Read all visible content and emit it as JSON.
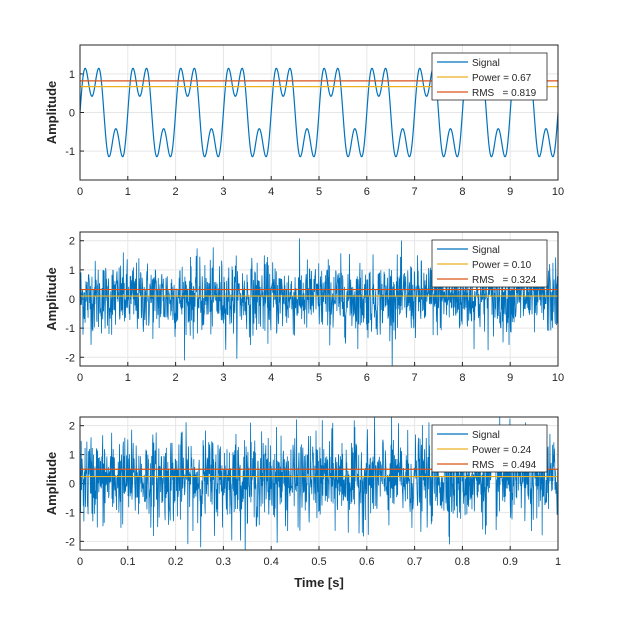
{
  "chart_data": [
    {
      "type": "line",
      "ylabel": "Amplitude",
      "xlabel": "",
      "xlim": [
        0,
        10
      ],
      "ylim": [
        -1.75,
        1.75
      ],
      "xticks": [
        "0",
        "1",
        "2",
        "3",
        "4",
        "5",
        "6",
        "7",
        "8",
        "9",
        "10"
      ],
      "yticks": [
        "-1",
        "0",
        "1"
      ],
      "ytick_values": [
        -1,
        0,
        1
      ],
      "grid": true,
      "legend_position": "top-right",
      "series": [
        {
          "name": "Signal",
          "color": "#0072bd",
          "kind": "periodic",
          "period": 1,
          "peak": 1.38,
          "trough": -1.38
        },
        {
          "name": "Power = 0.67",
          "color": "#edb120",
          "value": 0.67
        },
        {
          "name": "RMS   = 0.819",
          "color": "#d95319",
          "value": 0.819
        }
      ]
    },
    {
      "type": "line",
      "ylabel": "Amplitude",
      "xlabel": "",
      "xlim": [
        0,
        10
      ],
      "ylim": [
        -2.3,
        2.3
      ],
      "xticks": [
        "0",
        "1",
        "2",
        "3",
        "4",
        "5",
        "6",
        "7",
        "8",
        "9",
        "10"
      ],
      "yticks": [
        "-2",
        "-1",
        "0",
        "1",
        "2"
      ],
      "ytick_values": [
        -2,
        -1,
        0,
        1,
        2
      ],
      "grid": true,
      "legend_position": "top-right",
      "series": [
        {
          "name": "Signal",
          "color": "#0072bd",
          "kind": "noise"
        },
        {
          "name": "Power = 0.10",
          "color": "#edb120",
          "value": 0.1
        },
        {
          "name": "RMS   = 0.324",
          "color": "#d95319",
          "value": 0.324
        }
      ]
    },
    {
      "type": "line",
      "ylabel": "Amplitude",
      "xlabel": "Time [s]",
      "xlim": [
        0,
        1
      ],
      "ylim": [
        -2.3,
        2.3
      ],
      "xticks": [
        "0",
        "0.1",
        "0.2",
        "0.3",
        "0.4",
        "0.5",
        "0.6",
        "0.7",
        "0.8",
        "0.9",
        "1"
      ],
      "yticks": [
        "-2",
        "-1",
        "0",
        "1",
        "2"
      ],
      "ytick_values": [
        -2,
        -1,
        0,
        1,
        2
      ],
      "grid": true,
      "legend_position": "top-right",
      "series": [
        {
          "name": "Signal",
          "color": "#0072bd",
          "kind": "noise"
        },
        {
          "name": "Power = 0.24",
          "color": "#edb120",
          "value": 0.24
        },
        {
          "name": "RMS   = 0.494",
          "color": "#d95319",
          "value": 0.494
        }
      ]
    }
  ]
}
